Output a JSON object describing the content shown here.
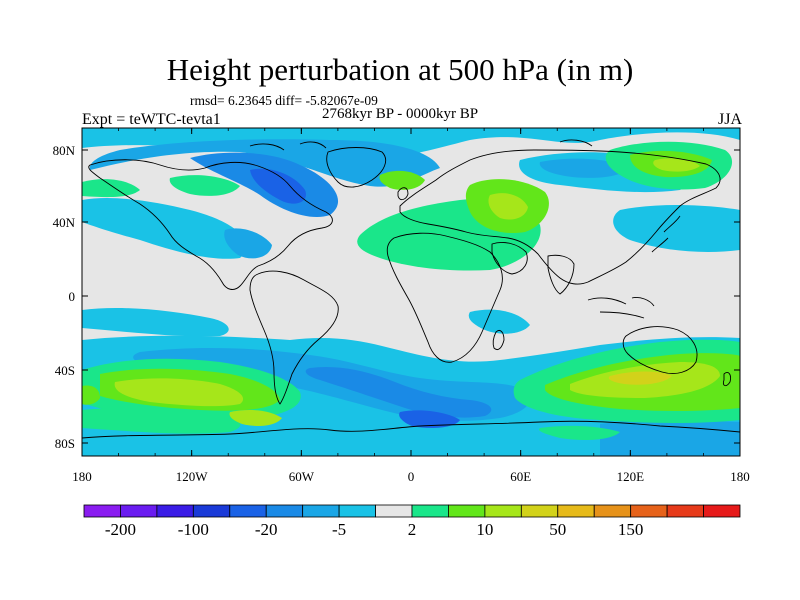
{
  "title": "Height perturbation at 500 hPa (in m)",
  "stats": "rmsd= 6.23645 diff= -5.82067e-09",
  "expt": "Expt = teWTC-tevta1",
  "period": "2768kyr BP - 0000kyr BP",
  "season": "JJA",
  "lat_labels": [
    "80N",
    "40N",
    "0",
    "40S",
    "80S"
  ],
  "lon_labels": [
    "180",
    "120W",
    "60W",
    "0",
    "60E",
    "120E",
    "180"
  ],
  "colorbar": {
    "colors": [
      "#8a1cf0",
      "#6a1cf0",
      "#3a1ce6",
      "#1a3ad8",
      "#1a62e6",
      "#1a8ae6",
      "#1aa6e6",
      "#1ac2e6",
      "#e6e6e6",
      "#1ae68a",
      "#62e61a",
      "#a6e61a",
      "#d2d21a",
      "#e6ba1a",
      "#e6921a",
      "#e6621a",
      "#e63a1a",
      "#e61a1a"
    ],
    "labels": [
      "-200",
      "-100",
      "-20",
      "-5",
      "2",
      "10",
      "50",
      "150"
    ]
  },
  "field": {
    "background": "#e6e6e6",
    "blue_light": "#1ac2e6",
    "blue_mid": "#1aa6e6",
    "blue_dark": "#1a8ae6",
    "blue_deep": "#1a62e6",
    "green_light": "#1ae68a",
    "green": "#62e61a",
    "yellow_green": "#a6e61a",
    "yellow": "#d2d21a"
  }
}
